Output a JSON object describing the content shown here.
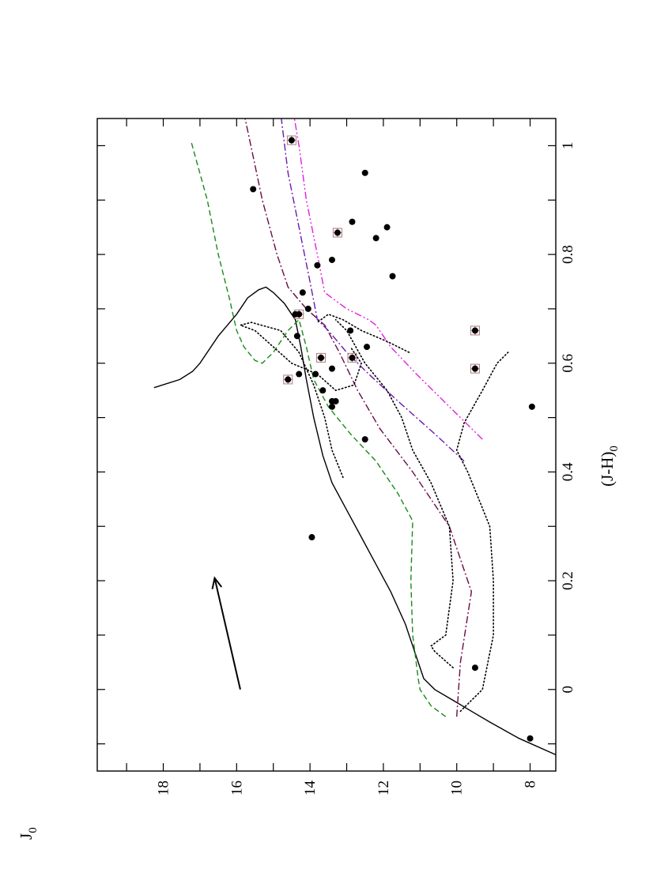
{
  "chart_data": {
    "type": "scatter",
    "title": "",
    "orientation": "rotated 90 degrees counter-clockwise (landscape figure on portrait page)",
    "xlabel": "(J-H)",
    "xlabel_subscript": "0",
    "ylabel": "J",
    "ylabel_subscript": "0",
    "xlim": [
      -0.15,
      1.05
    ],
    "ylim": [
      19.8,
      7.3
    ],
    "y_inverted": true,
    "x_ticks": [
      -0.1,
      0,
      0.1,
      0.2,
      0.3,
      0.4,
      0.5,
      0.6,
      0.7,
      0.8,
      0.9,
      1.0
    ],
    "x_tick_labels": [
      {
        "value": 0,
        "label": "0"
      },
      {
        "value": 0.2,
        "label": "0.2"
      },
      {
        "value": 0.4,
        "label": "0.4"
      },
      {
        "value": 0.6,
        "label": "0.6"
      },
      {
        "value": 0.8,
        "label": "0.8"
      },
      {
        "value": 1.0,
        "label": "1"
      }
    ],
    "y_ticks": [
      8,
      9,
      10,
      11,
      12,
      13,
      14,
      15,
      16,
      17,
      18,
      19
    ],
    "y_tick_labels": [
      {
        "value": 8,
        "label": "8"
      },
      {
        "value": 10,
        "label": "10"
      },
      {
        "value": 12,
        "label": "12"
      },
      {
        "value": 14,
        "label": "14"
      },
      {
        "value": 16,
        "label": "16"
      },
      {
        "value": 18,
        "label": "18"
      }
    ],
    "grid": false,
    "points": [
      {
        "x": -0.09,
        "y": 8.0,
        "err": false
      },
      {
        "x": 0.04,
        "y": 9.5,
        "err": false
      },
      {
        "x": 0.28,
        "y": 13.95,
        "err": false
      },
      {
        "x": 0.46,
        "y": 12.5,
        "err": false
      },
      {
        "x": 0.52,
        "y": 7.95,
        "err": false
      },
      {
        "x": 0.52,
        "y": 13.4,
        "err": false
      },
      {
        "x": 0.53,
        "y": 13.3,
        "err": false
      },
      {
        "x": 0.53,
        "y": 13.4,
        "err": false
      },
      {
        "x": 0.55,
        "y": 13.65,
        "err": false
      },
      {
        "x": 0.57,
        "y": 14.6,
        "err": true
      },
      {
        "x": 0.58,
        "y": 13.85,
        "err": false
      },
      {
        "x": 0.58,
        "y": 14.3,
        "err": false
      },
      {
        "x": 0.59,
        "y": 9.5,
        "err": true
      },
      {
        "x": 0.59,
        "y": 13.4,
        "err": false
      },
      {
        "x": 0.61,
        "y": 12.85,
        "err": true
      },
      {
        "x": 0.61,
        "y": 13.7,
        "err": true
      },
      {
        "x": 0.63,
        "y": 12.45,
        "err": false
      },
      {
        "x": 0.65,
        "y": 14.35,
        "err": false
      },
      {
        "x": 0.66,
        "y": 9.5,
        "err": true
      },
      {
        "x": 0.66,
        "y": 12.9,
        "err": false
      },
      {
        "x": 0.69,
        "y": 14.3,
        "err": true
      },
      {
        "x": 0.69,
        "y": 14.4,
        "err": false
      },
      {
        "x": 0.7,
        "y": 14.05,
        "err": false
      },
      {
        "x": 0.73,
        "y": 14.2,
        "err": false
      },
      {
        "x": 0.76,
        "y": 11.75,
        "err": false
      },
      {
        "x": 0.78,
        "y": 13.8,
        "err": false
      },
      {
        "x": 0.79,
        "y": 13.4,
        "err": false
      },
      {
        "x": 0.83,
        "y": 12.2,
        "err": false
      },
      {
        "x": 0.84,
        "y": 13.25,
        "err": true
      },
      {
        "x": 0.85,
        "y": 11.9,
        "err": false
      },
      {
        "x": 0.86,
        "y": 12.85,
        "err": false
      },
      {
        "x": 0.92,
        "y": 15.55,
        "err": false
      },
      {
        "x": 0.95,
        "y": 12.5,
        "err": false
      },
      {
        "x": 1.01,
        "y": 14.5,
        "err": true
      }
    ],
    "curves": [
      {
        "style": "solid",
        "color": "#000000",
        "points": [
          [
            -0.12,
            7.3
          ],
          [
            -0.09,
            8.3
          ],
          [
            -0.06,
            9.1
          ],
          [
            -0.04,
            9.6
          ],
          [
            -0.02,
            10.1
          ],
          [
            0.0,
            10.6
          ],
          [
            0.02,
            10.9
          ],
          [
            0.06,
            11.1
          ],
          [
            0.12,
            11.4
          ],
          [
            0.18,
            11.8
          ],
          [
            0.23,
            12.2
          ],
          [
            0.28,
            12.6
          ],
          [
            0.33,
            13.0
          ],
          [
            0.38,
            13.4
          ],
          [
            0.43,
            13.65
          ],
          [
            0.5,
            13.9
          ],
          [
            0.57,
            14.1
          ],
          [
            0.63,
            14.25
          ],
          [
            0.68,
            14.4
          ],
          [
            0.71,
            14.7
          ],
          [
            0.73,
            15.0
          ],
          [
            0.74,
            15.2
          ],
          [
            0.735,
            15.4
          ],
          [
            0.72,
            15.7
          ],
          [
            0.69,
            16.0
          ],
          [
            0.65,
            16.5
          ],
          [
            0.6,
            17.0
          ],
          [
            0.585,
            17.2
          ],
          [
            0.57,
            17.55
          ],
          [
            0.555,
            18.25
          ]
        ]
      },
      {
        "style": "dashed",
        "color": "#1a8a1a",
        "points": [
          [
            -0.05,
            10.3
          ],
          [
            -0.03,
            10.7
          ],
          [
            0.0,
            11.0
          ],
          [
            0.02,
            11.05
          ],
          [
            0.1,
            11.2
          ],
          [
            0.2,
            11.25
          ],
          [
            0.31,
            11.2
          ],
          [
            0.36,
            11.6
          ],
          [
            0.42,
            12.2
          ],
          [
            0.47,
            12.9
          ],
          [
            0.52,
            13.5
          ],
          [
            0.57,
            13.9
          ],
          [
            0.63,
            14.1
          ],
          [
            0.68,
            14.3
          ],
          [
            0.66,
            14.6
          ],
          [
            0.62,
            15.0
          ],
          [
            0.6,
            15.3
          ],
          [
            0.605,
            15.5
          ],
          [
            0.63,
            15.8
          ],
          [
            0.66,
            16.0
          ],
          [
            0.72,
            16.2
          ],
          [
            0.8,
            16.5
          ],
          [
            0.9,
            16.8
          ],
          [
            1.01,
            17.25
          ]
        ]
      },
      {
        "style": "dashdot",
        "color": "#6a0a4a",
        "points": [
          [
            -0.05,
            10.0
          ],
          [
            0.05,
            9.9
          ],
          [
            0.18,
            9.6
          ],
          [
            0.3,
            10.2
          ],
          [
            0.4,
            11.2
          ],
          [
            0.48,
            12.1
          ],
          [
            0.55,
            12.7
          ],
          [
            0.62,
            13.2
          ],
          [
            0.67,
            13.6
          ],
          [
            0.7,
            14.1
          ],
          [
            0.74,
            14.6
          ],
          [
            0.8,
            14.9
          ],
          [
            0.9,
            15.3
          ],
          [
            1.06,
            15.8
          ]
        ]
      },
      {
        "style": "dashdot",
        "color": "#6a1ab0",
        "points": [
          [
            0.42,
            9.8
          ],
          [
            0.47,
            10.6
          ],
          [
            0.53,
            11.6
          ],
          [
            0.58,
            12.4
          ],
          [
            0.62,
            13.0
          ],
          [
            0.66,
            13.5
          ],
          [
            0.68,
            13.8
          ],
          [
            0.75,
            14.0
          ],
          [
            0.85,
            14.3
          ],
          [
            0.95,
            14.6
          ],
          [
            1.06,
            14.8
          ]
        ]
      },
      {
        "style": "dashdotdot",
        "color": "#e020e0",
        "points": [
          [
            0.46,
            9.3
          ],
          [
            0.52,
            10.2
          ],
          [
            0.58,
            11.1
          ],
          [
            0.63,
            11.8
          ],
          [
            0.67,
            12.2
          ],
          [
            0.68,
            12.4
          ],
          [
            0.7,
            13.0
          ],
          [
            0.73,
            13.6
          ],
          [
            0.8,
            13.8
          ],
          [
            0.9,
            14.1
          ],
          [
            1.0,
            14.3
          ],
          [
            1.06,
            14.45
          ]
        ]
      },
      {
        "style": "dotted",
        "color": "#000000",
        "points": [
          [
            -0.04,
            9.9
          ],
          [
            0.0,
            9.3
          ],
          [
            0.1,
            9.0
          ],
          [
            0.2,
            9.0
          ],
          [
            0.3,
            9.1
          ],
          [
            0.35,
            9.4
          ],
          [
            0.4,
            9.7
          ],
          [
            0.44,
            10.0
          ],
          [
            0.49,
            9.8
          ],
          [
            0.55,
            9.3
          ],
          [
            0.6,
            8.9
          ],
          [
            0.62,
            8.6
          ]
        ]
      },
      {
        "style": "dotted",
        "color": "#000000",
        "points": [
          [
            0.04,
            10.1
          ],
          [
            0.07,
            10.6
          ],
          [
            0.08,
            10.7
          ],
          [
            0.1,
            10.3
          ],
          [
            0.2,
            10.1
          ],
          [
            0.3,
            10.2
          ],
          [
            0.38,
            10.7
          ],
          [
            0.44,
            11.2
          ],
          [
            0.5,
            11.5
          ],
          [
            0.55,
            11.9
          ],
          [
            0.6,
            12.5
          ],
          [
            0.66,
            13.0
          ],
          [
            0.68,
            13.3
          ]
        ]
      },
      {
        "style": "dotted",
        "color": "#000000",
        "points": [
          [
            0.39,
            13.1
          ],
          [
            0.44,
            13.4
          ],
          [
            0.5,
            13.6
          ],
          [
            0.56,
            13.9
          ],
          [
            0.62,
            14.3
          ],
          [
            0.66,
            14.8
          ],
          [
            0.675,
            15.6
          ],
          [
            0.67,
            15.9
          ],
          [
            0.66,
            15.5
          ],
          [
            0.63,
            15.0
          ],
          [
            0.6,
            14.5
          ],
          [
            0.58,
            13.8
          ],
          [
            0.55,
            13.3
          ],
          [
            0.56,
            12.8
          ],
          [
            0.6,
            12.6
          ],
          [
            0.63,
            12.9
          ]
        ]
      },
      {
        "style": "dotted",
        "color": "#000000",
        "points": [
          [
            0.62,
            11.3
          ],
          [
            0.64,
            11.9
          ],
          [
            0.66,
            12.6
          ],
          [
            0.68,
            13.1
          ],
          [
            0.69,
            13.5
          ],
          [
            0.675,
            13.8
          ]
        ]
      }
    ],
    "reddening_vector": {
      "from": [
        0.0,
        15.9
      ],
      "to": [
        0.205,
        16.6
      ]
    }
  }
}
